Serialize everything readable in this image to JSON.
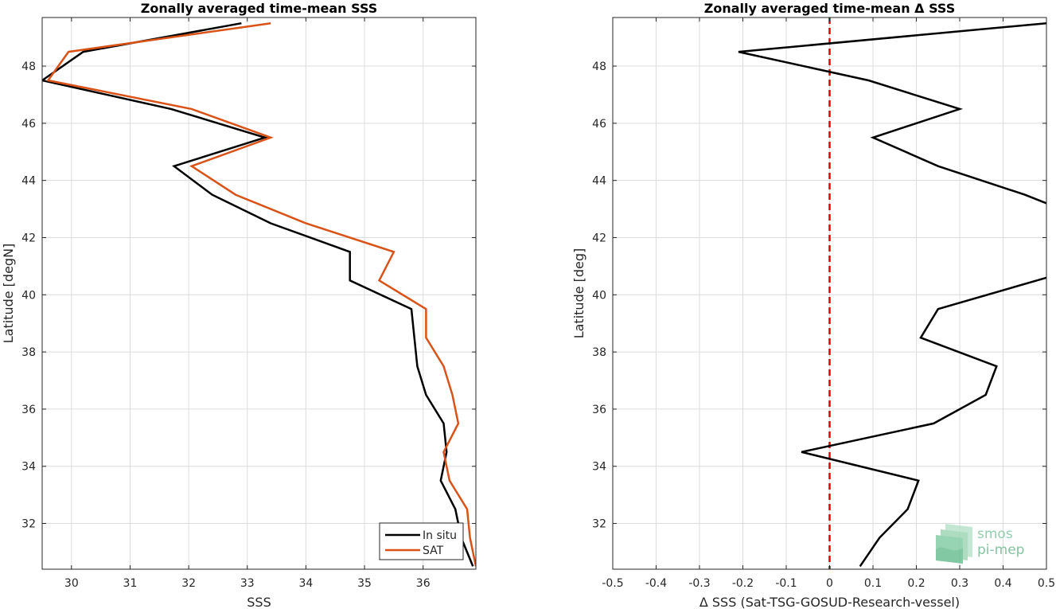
{
  "colors": {
    "insitu": "#000000",
    "sat": "#d95319",
    "zero_line": "#e00000",
    "grid": "#dcdcdc",
    "logo": "#86cda7"
  },
  "logo": {
    "line1": "smos",
    "line2": "pi-mep"
  },
  "chart_data": [
    {
      "type": "line",
      "title": "Zonally averaged time-mean SSS",
      "xlabel": "SSS",
      "ylabel": "Latitude [degN]",
      "xlim": [
        29.5,
        36.9
      ],
      "ylim": [
        30.4,
        49.7
      ],
      "xticks": [
        30,
        31,
        32,
        33,
        34,
        35,
        36
      ],
      "yticks": [
        32,
        34,
        36,
        38,
        40,
        42,
        44,
        46,
        48
      ],
      "grid": true,
      "legend": {
        "position": "bottom-right",
        "entries": [
          "In situ",
          "SAT"
        ]
      },
      "series": [
        {
          "name": "In situ",
          "color": "#000000",
          "x": [
            36.85,
            36.65,
            36.55,
            36.3,
            36.4,
            36.35,
            36.05,
            35.9,
            35.85,
            35.8,
            34.75,
            34.75,
            33.4,
            32.4,
            31.75,
            33.3,
            31.7,
            29.5,
            30.2,
            32.9
          ],
          "y": [
            30.5,
            31.5,
            32.5,
            33.5,
            34.5,
            35.5,
            36.5,
            37.5,
            38.5,
            39.5,
            40.5,
            41.5,
            42.5,
            43.5,
            44.5,
            45.5,
            46.5,
            47.5,
            48.5,
            49.5
          ]
        },
        {
          "name": "SAT",
          "color": "#d95319",
          "x": [
            36.9,
            36.8,
            36.75,
            36.45,
            36.35,
            36.6,
            36.5,
            36.35,
            36.05,
            36.05,
            35.25,
            35.5,
            34.0,
            32.8,
            32.05,
            33.4,
            32.05,
            29.6,
            29.95,
            33.4
          ],
          "y": [
            30.5,
            31.5,
            32.5,
            33.5,
            34.5,
            35.5,
            36.5,
            37.5,
            38.5,
            39.5,
            40.5,
            41.5,
            42.5,
            43.5,
            44.5,
            45.5,
            46.5,
            47.5,
            48.5,
            49.5
          ]
        }
      ]
    },
    {
      "type": "line",
      "title": "Zonally averaged time-mean Δ SSS",
      "xlabel": "Δ SSS (Sat-TSG-GOSUD-Research-vessel)",
      "ylabel": "Latitude [deg]",
      "xlim": [
        -0.5,
        0.5
      ],
      "ylim": [
        30.4,
        49.7
      ],
      "xticks": [
        -0.5,
        -0.4,
        -0.3,
        -0.2,
        -0.1,
        0,
        0.1,
        0.2,
        0.3,
        0.4,
        0.5
      ],
      "yticks": [
        32,
        34,
        36,
        38,
        40,
        42,
        44,
        46,
        48
      ],
      "grid": true,
      "reference_line_x": 0,
      "series": [
        {
          "color": "#000000",
          "x": [
            0.07,
            0.115,
            0.18,
            0.205,
            -0.065,
            0.24,
            0.36,
            0.385,
            0.21,
            0.25,
            0.5
          ],
          "y": [
            30.5,
            31.5,
            32.5,
            33.5,
            34.5,
            35.5,
            36.5,
            37.5,
            38.5,
            39.5,
            40.6
          ]
        },
        {
          "color": "#000000",
          "x": [
            0.5,
            0.45,
            0.25,
            0.1,
            0.3,
            0.09,
            -0.21,
            0.5
          ],
          "y": [
            43.2,
            43.5,
            44.5,
            45.5,
            46.5,
            47.5,
            48.5,
            49.5
          ]
        }
      ]
    }
  ]
}
